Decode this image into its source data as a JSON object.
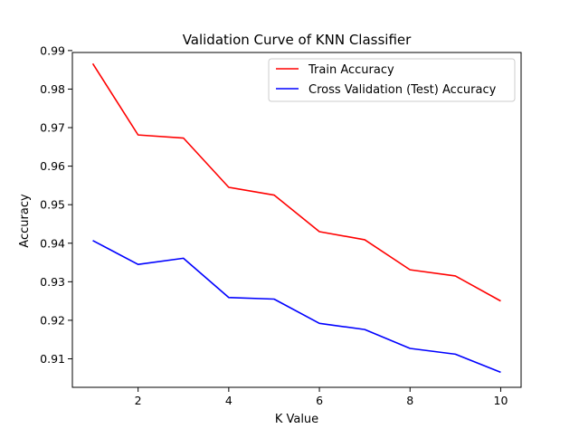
{
  "chart_data": {
    "type": "line",
    "title": "Validation Curve of KNN Classifier",
    "xlabel": "K Value",
    "ylabel": "Accuracy",
    "x": [
      1,
      2,
      3,
      4,
      5,
      6,
      7,
      8,
      9,
      10
    ],
    "xlim": [
      0.55,
      10.45
    ],
    "ylim": [
      0.9026,
      0.9895
    ],
    "xticks": [
      2,
      4,
      6,
      8,
      10
    ],
    "xtick_labels": [
      "2",
      "4",
      "6",
      "8",
      "10"
    ],
    "yticks": [
      0.91,
      0.92,
      0.93,
      0.94,
      0.95,
      0.96,
      0.97,
      0.98,
      0.99
    ],
    "ytick_labels": [
      "0.91",
      "0.92",
      "0.93",
      "0.94",
      "0.95",
      "0.96",
      "0.97",
      "0.98",
      "0.99"
    ],
    "grid": false,
    "legend_position": "upper right",
    "series": [
      {
        "name": "Train Accuracy",
        "color": "#ff0000",
        "values": [
          0.9866,
          0.9681,
          0.9673,
          0.9545,
          0.9525,
          0.943,
          0.9409,
          0.9331,
          0.9315,
          0.925
        ]
      },
      {
        "name": "Cross Validation (Test) Accuracy",
        "color": "#0000ff",
        "values": [
          0.9407,
          0.9345,
          0.9361,
          0.9259,
          0.9255,
          0.9192,
          0.9176,
          0.9127,
          0.9112,
          0.9065
        ]
      }
    ]
  }
}
